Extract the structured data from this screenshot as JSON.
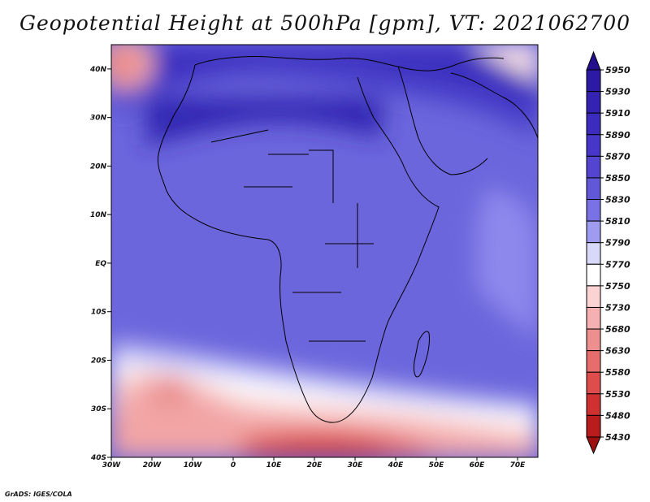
{
  "title": "Geopotential Height at 500hPa [gpm], VT: 2021062700",
  "credit": "GrADS: IGES/COLA",
  "map": {
    "lat_labels": [
      "40N",
      "30N",
      "20N",
      "10N",
      "EQ",
      "10S",
      "20S",
      "30S",
      "40S"
    ],
    "lon_labels": [
      "30W",
      "20W",
      "10W",
      "0",
      "10E",
      "20E",
      "30E",
      "40E",
      "50E",
      "60E",
      "70E"
    ],
    "extent": {
      "lon_min": -30,
      "lon_max": 75,
      "lat_min": -40,
      "lat_max": 45
    }
  },
  "colorbar": {
    "levels": [
      5950,
      5930,
      5910,
      5890,
      5870,
      5850,
      5830,
      5810,
      5790,
      5770,
      5750,
      5730,
      5680,
      5630,
      5580,
      5530,
      5480,
      5430
    ],
    "colors": [
      "#24108f",
      "#2c1aa4",
      "#3422b3",
      "#3b2cbe",
      "#4737c8",
      "#5345d0",
      "#6158d8",
      "#7872e4",
      "#9e9bf0",
      "#d8d8fb",
      "#ffffff",
      "#fbd3d3",
      "#f5b1b1",
      "#ee8f8f",
      "#e76d6d",
      "#de4c4c",
      "#cf3030",
      "#b81c1c",
      "#9c1010"
    ]
  }
}
